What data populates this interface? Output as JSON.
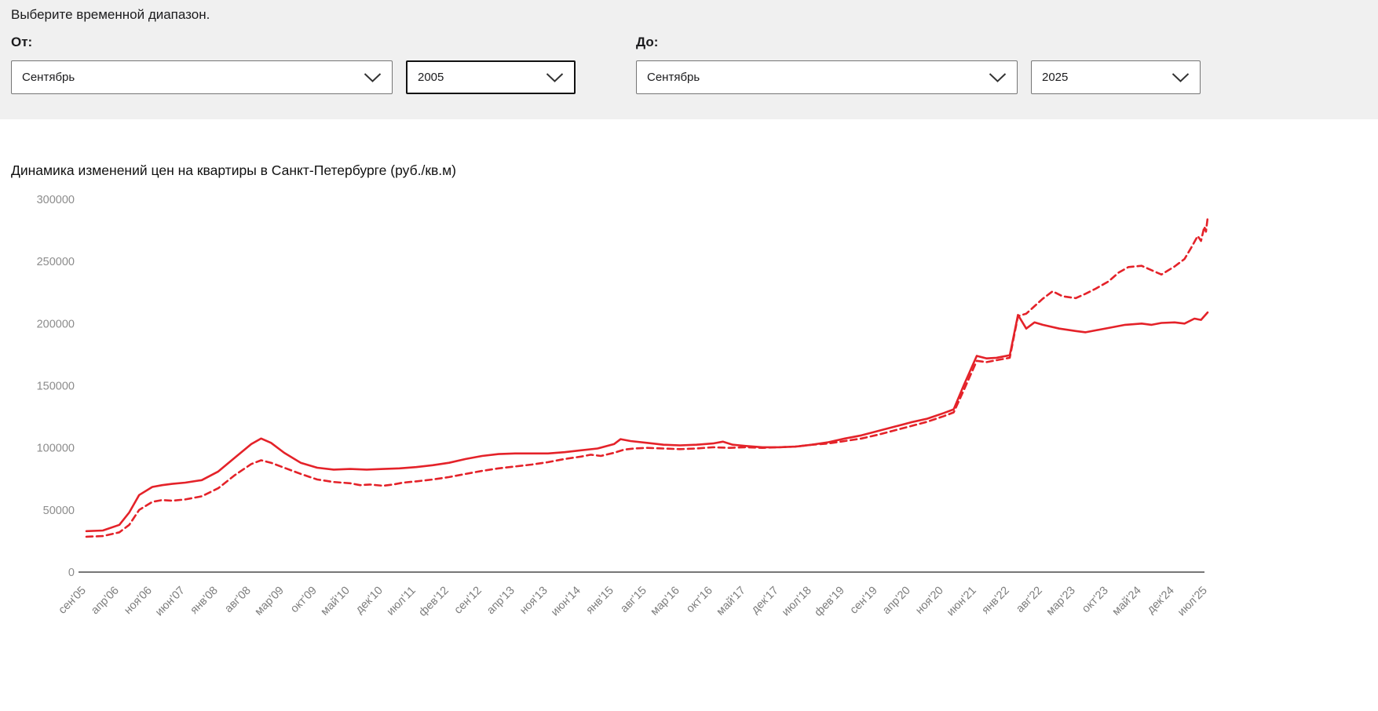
{
  "filters": {
    "heading": "Выберите временной диапазон.",
    "from": {
      "label": "От:",
      "month": "Сентябрь",
      "year": "2005"
    },
    "to": {
      "label": "До:",
      "month": "Сентябрь",
      "year": "2025"
    }
  },
  "chart": {
    "title": "Динамика изменений цен на квартиры в Санкт-Петербурге (руб./кв.м)"
  },
  "chart_data": {
    "type": "line",
    "title": "Динамика изменений цен на квартиры в Санкт-Петербурге (руб./кв.м)",
    "ylabel": "",
    "xlabel": "",
    "ylim": [
      0,
      300000
    ],
    "y_ticks": [
      0,
      50000,
      100000,
      150000,
      200000,
      250000,
      300000
    ],
    "grid": false,
    "legend_position": "none",
    "line_color": "#e42229",
    "categories": [
      "сен'05",
      "апр'06",
      "ноя'06",
      "июн'07",
      "янв'08",
      "авг'08",
      "мар'09",
      "окт'09",
      "май'10",
      "дек'10",
      "июл'11",
      "фев'12",
      "сен'12",
      "апр'13",
      "ноя'13",
      "июн'14",
      "янв'15",
      "авг'15",
      "мар'16",
      "окт'16",
      "май'17",
      "дек'17",
      "июл'18",
      "фев'19",
      "сен'19",
      "апр'20",
      "ноя'20",
      "июн'21",
      "янв'22",
      "авг'22",
      "мар'23",
      "окт'23",
      "май'24",
      "дек'24",
      "июл'25"
    ],
    "series": [
      {
        "name": "solid",
        "style": "solid",
        "points": [
          [
            0,
            33000
          ],
          [
            0.5,
            33500
          ],
          [
            1,
            38000
          ],
          [
            1.3,
            48000
          ],
          [
            1.6,
            62000
          ],
          [
            2,
            68500
          ],
          [
            2.3,
            70000
          ],
          [
            2.6,
            71000
          ],
          [
            3,
            72000
          ],
          [
            3.5,
            74000
          ],
          [
            4,
            81000
          ],
          [
            4.5,
            92000
          ],
          [
            5,
            103000
          ],
          [
            5.3,
            107500
          ],
          [
            5.6,
            104000
          ],
          [
            6,
            96000
          ],
          [
            6.5,
            88000
          ],
          [
            7,
            84000
          ],
          [
            7.5,
            82500
          ],
          [
            8,
            83000
          ],
          [
            8.5,
            82500
          ],
          [
            9,
            83000
          ],
          [
            9.5,
            83500
          ],
          [
            10,
            84500
          ],
          [
            10.5,
            86000
          ],
          [
            11,
            88000
          ],
          [
            11.5,
            91000
          ],
          [
            12,
            93500
          ],
          [
            12.5,
            95000
          ],
          [
            13,
            95500
          ],
          [
            13.5,
            95500
          ],
          [
            14,
            95500
          ],
          [
            14.5,
            96500
          ],
          [
            15,
            98000
          ],
          [
            15.5,
            99500
          ],
          [
            16,
            103000
          ],
          [
            16.2,
            107000
          ],
          [
            16.5,
            105500
          ],
          [
            17,
            104000
          ],
          [
            17.5,
            102500
          ],
          [
            18,
            102000
          ],
          [
            18.5,
            102500
          ],
          [
            19,
            103500
          ],
          [
            19.3,
            105000
          ],
          [
            19.6,
            102500
          ],
          [
            20,
            101500
          ],
          [
            20.5,
            100500
          ],
          [
            21,
            100500
          ],
          [
            21.5,
            101000
          ],
          [
            22,
            102500
          ],
          [
            22.5,
            104500
          ],
          [
            23,
            107500
          ],
          [
            23.5,
            110000
          ],
          [
            24,
            113500
          ],
          [
            24.5,
            117000
          ],
          [
            25,
            120500
          ],
          [
            25.5,
            123500
          ],
          [
            26,
            128000
          ],
          [
            26.3,
            131000
          ],
          [
            26.6,
            150000
          ],
          [
            27,
            174000
          ],
          [
            27.3,
            172000
          ],
          [
            27.6,
            172500
          ],
          [
            28,
            174500
          ],
          [
            28.25,
            207000
          ],
          [
            28.5,
            196000
          ],
          [
            28.75,
            201000
          ],
          [
            29,
            199000
          ],
          [
            29.5,
            196000
          ],
          [
            30,
            194000
          ],
          [
            30.3,
            193000
          ],
          [
            30.6,
            194500
          ],
          [
            31,
            196500
          ],
          [
            31.5,
            199000
          ],
          [
            32,
            200000
          ],
          [
            32.3,
            199000
          ],
          [
            32.6,
            200500
          ],
          [
            33,
            201000
          ],
          [
            33.3,
            200000
          ],
          [
            33.6,
            204000
          ],
          [
            33.8,
            203000
          ],
          [
            34,
            209000
          ]
        ]
      },
      {
        "name": "dashed",
        "style": "dashed",
        "points": [
          [
            0,
            28500
          ],
          [
            0.5,
            29000
          ],
          [
            1,
            32000
          ],
          [
            1.3,
            38000
          ],
          [
            1.6,
            50000
          ],
          [
            2,
            56500
          ],
          [
            2.3,
            58000
          ],
          [
            2.6,
            57500
          ],
          [
            3,
            58500
          ],
          [
            3.5,
            61000
          ],
          [
            4,
            67500
          ],
          [
            4.5,
            78000
          ],
          [
            5,
            87000
          ],
          [
            5.3,
            90000
          ],
          [
            5.6,
            88000
          ],
          [
            6,
            84000
          ],
          [
            6.5,
            79000
          ],
          [
            7,
            74500
          ],
          [
            7.5,
            72500
          ],
          [
            8,
            71500
          ],
          [
            8.3,
            70000
          ],
          [
            8.6,
            70500
          ],
          [
            9,
            69500
          ],
          [
            9.3,
            70500
          ],
          [
            9.6,
            72000
          ],
          [
            10,
            73000
          ],
          [
            10.5,
            74500
          ],
          [
            11,
            76500
          ],
          [
            11.5,
            79000
          ],
          [
            12,
            81500
          ],
          [
            12.5,
            83500
          ],
          [
            13,
            85000
          ],
          [
            13.5,
            86500
          ],
          [
            14,
            88500
          ],
          [
            14.5,
            91000
          ],
          [
            15,
            93000
          ],
          [
            15.3,
            94500
          ],
          [
            15.6,
            93500
          ],
          [
            16,
            96000
          ],
          [
            16.3,
            98500
          ],
          [
            16.6,
            99500
          ],
          [
            17,
            100000
          ],
          [
            17.5,
            99500
          ],
          [
            18,
            99000
          ],
          [
            18.5,
            99500
          ],
          [
            19,
            100500
          ],
          [
            19.5,
            100000
          ],
          [
            20,
            100500
          ],
          [
            20.5,
            100000
          ],
          [
            21,
            100500
          ],
          [
            21.5,
            101000
          ],
          [
            22,
            102500
          ],
          [
            22.5,
            103500
          ],
          [
            23,
            105500
          ],
          [
            23.5,
            107500
          ],
          [
            24,
            110500
          ],
          [
            24.5,
            114000
          ],
          [
            25,
            117500
          ],
          [
            25.5,
            121000
          ],
          [
            26,
            125500
          ],
          [
            26.3,
            128500
          ],
          [
            26.6,
            146000
          ],
          [
            27,
            170000
          ],
          [
            27.3,
            169000
          ],
          [
            27.6,
            170500
          ],
          [
            28,
            172500
          ],
          [
            28.25,
            206000
          ],
          [
            28.5,
            208000
          ],
          [
            29,
            220000
          ],
          [
            29.3,
            226000
          ],
          [
            29.6,
            222000
          ],
          [
            30,
            220500
          ],
          [
            30.3,
            224000
          ],
          [
            30.6,
            228000
          ],
          [
            31,
            234000
          ],
          [
            31.3,
            241000
          ],
          [
            31.6,
            245500
          ],
          [
            32,
            246500
          ],
          [
            32.3,
            243000
          ],
          [
            32.6,
            239500
          ],
          [
            33,
            246000
          ],
          [
            33.3,
            252000
          ],
          [
            33.5,
            261000
          ],
          [
            33.7,
            270500
          ],
          [
            33.8,
            266500
          ],
          [
            33.9,
            278000
          ],
          [
            33.95,
            274000
          ],
          [
            34,
            285000
          ]
        ]
      }
    ]
  }
}
